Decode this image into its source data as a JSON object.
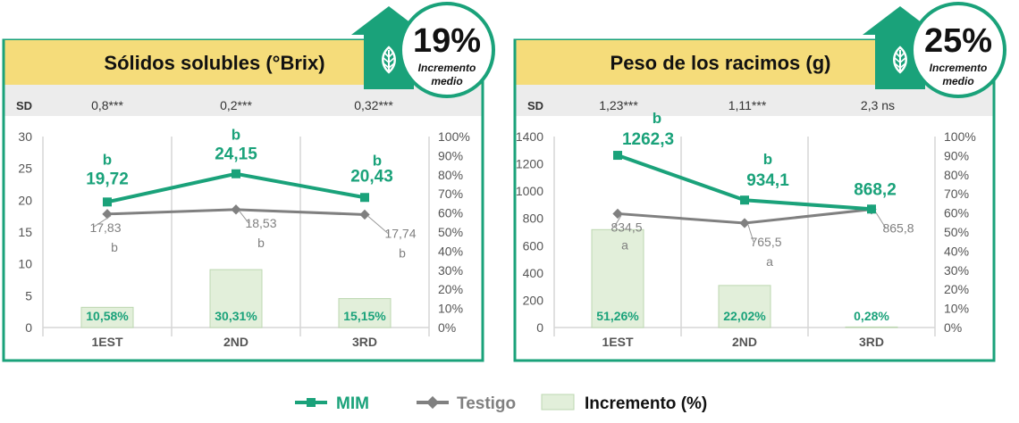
{
  "colors": {
    "mim": "#1aa27a",
    "testigo": "#808080",
    "bar": "#e2efda",
    "bar_stroke": "#bcd7b0",
    "title_bg": "#f5dc7a",
    "sd_bg": "#ececec",
    "border": "#1aa27a"
  },
  "legend": {
    "mim": "MIM",
    "testigo": "Testigo",
    "incremento": "Incremento (%)"
  },
  "chart_data": [
    {
      "type": "line",
      "title": "Sólidos solubles (°Brix)",
      "badge": {
        "value": "19%",
        "text_line1": "Incremento",
        "text_line2": "medio",
        "icon": "leaf-icon"
      },
      "sd_label": "SD",
      "sd_values": [
        "0,8***",
        "0,2***",
        "0,32***"
      ],
      "categories": [
        "1EST",
        "2ND",
        "3RD"
      ],
      "ylim": [
        0,
        30
      ],
      "yticks": [
        "0",
        "5",
        "10",
        "15",
        "20",
        "25",
        "30"
      ],
      "y2lim": [
        0,
        100
      ],
      "y2ticks": [
        "0%",
        "10%",
        "20%",
        "30%",
        "40%",
        "50%",
        "60%",
        "70%",
        "80%",
        "90%",
        "100%"
      ],
      "series": [
        {
          "name": "MIM",
          "values": [
            19.72,
            24.15,
            20.43
          ],
          "labels": [
            "19,72",
            "24,15",
            "20,43"
          ],
          "letters": [
            "b",
            "b",
            "b"
          ]
        },
        {
          "name": "Testigo",
          "values": [
            17.83,
            18.53,
            17.74
          ],
          "labels": [
            "17,83",
            "18,53",
            "17,74"
          ],
          "letters": [
            "b",
            "b",
            "b"
          ]
        },
        {
          "name": "Incremento (%)",
          "values": [
            10.58,
            30.31,
            15.15
          ],
          "labels": [
            "10,58%",
            "30,31%",
            "15,15%"
          ]
        }
      ]
    },
    {
      "type": "line",
      "title": "Peso de los racimos (g)",
      "badge": {
        "value": "25%",
        "text_line1": "Incremento",
        "text_line2": "medio",
        "icon": "leaf-icon"
      },
      "sd_label": "SD",
      "sd_values": [
        "1,23***",
        "1,11***",
        "2,3 ns"
      ],
      "categories": [
        "1EST",
        "2ND",
        "3RD"
      ],
      "ylim": [
        0,
        1400
      ],
      "yticks": [
        "0",
        "200",
        "400",
        "600",
        "800",
        "1000",
        "1200",
        "1400"
      ],
      "y2lim": [
        0,
        100
      ],
      "y2ticks": [
        "0%",
        "10%",
        "20%",
        "30%",
        "40%",
        "50%",
        "60%",
        "70%",
        "80%",
        "90%",
        "100%"
      ],
      "series": [
        {
          "name": "MIM",
          "values": [
            1262.3,
            934.1,
            868.2
          ],
          "labels": [
            "1262,3",
            "934,1",
            "868,2"
          ],
          "letters": [
            "b",
            "b",
            ""
          ]
        },
        {
          "name": "Testigo",
          "values": [
            834.5,
            765.5,
            865.8
          ],
          "labels": [
            "834,5",
            "765,5",
            "865,8"
          ],
          "letters": [
            "a",
            "a",
            ""
          ]
        },
        {
          "name": "Incremento (%)",
          "values": [
            51.26,
            22.02,
            0.28
          ],
          "labels": [
            "51,26%",
            "22,02%",
            "0,28%"
          ]
        }
      ]
    }
  ]
}
